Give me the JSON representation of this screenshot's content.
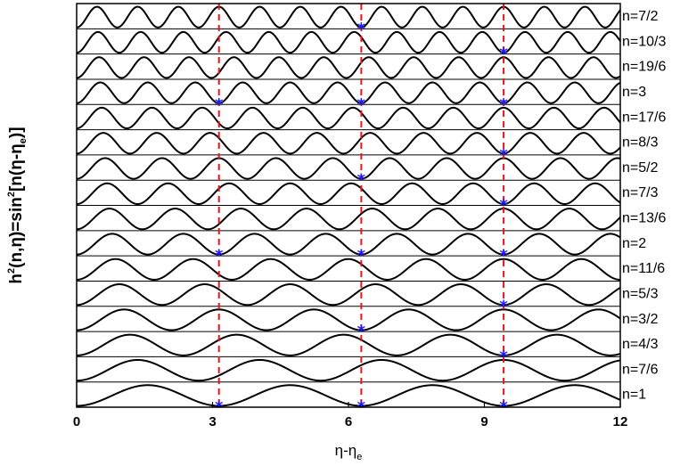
{
  "chart_data": {
    "type": "line",
    "title": "",
    "ylabel": {
      "h": "h",
      "sq1": "2",
      "mid": "(n,η)=sin",
      "sq2": "2",
      "bracket": "[n(η-η",
      "sub_e": "e",
      "end": ")]"
    },
    "xlabel": {
      "main": "η-η",
      "sub": "e"
    },
    "xlim": [
      0,
      12
    ],
    "xticks": [
      0,
      3,
      6,
      9,
      12
    ],
    "xtick_labels": [
      "0",
      "3",
      "6",
      "9",
      "12"
    ],
    "function": "sin^2[n(η-η_e)]",
    "grid": false,
    "legend": "none",
    "series": [
      {
        "name": "n=1",
        "n": 1.0,
        "star_x": [
          3.1416,
          6.2832,
          9.4248
        ]
      },
      {
        "name": "n=7/6",
        "n": 1.16667,
        "star_x": []
      },
      {
        "name": "n=4/3",
        "n": 1.33333,
        "star_x": [
          9.4248
        ]
      },
      {
        "name": "n=3/2",
        "n": 1.5,
        "star_x": [
          6.2832
        ]
      },
      {
        "name": "n=5/3",
        "n": 1.66667,
        "star_x": [
          9.4248
        ]
      },
      {
        "name": "n=11/6",
        "n": 1.83333,
        "star_x": []
      },
      {
        "name": "n=2",
        "n": 2.0,
        "star_x": [
          3.1416,
          6.2832,
          9.4248
        ]
      },
      {
        "name": "n=13/6",
        "n": 2.16667,
        "star_x": []
      },
      {
        "name": "n=7/3",
        "n": 2.33333,
        "star_x": [
          9.4248
        ]
      },
      {
        "name": "n=5/2",
        "n": 2.5,
        "star_x": [
          6.2832
        ]
      },
      {
        "name": "n=8/3",
        "n": 2.66667,
        "star_x": [
          9.4248
        ]
      },
      {
        "name": "n=17/6",
        "n": 2.83333,
        "star_x": []
      },
      {
        "name": "n=3",
        "n": 3.0,
        "star_x": [
          3.1416,
          6.2832,
          9.4248
        ]
      },
      {
        "name": "n=19/6",
        "n": 3.16667,
        "star_x": []
      },
      {
        "name": "n=10/3",
        "n": 3.33333,
        "star_x": [
          9.4248
        ]
      },
      {
        "name": "n=7/2",
        "n": 3.5,
        "star_x": [
          6.2832
        ]
      }
    ],
    "vlines_x": [
      3.1416,
      6.2832,
      9.4248
    ],
    "colors": {
      "curve": "#000000",
      "vline": "#e8141e",
      "star": "#1a1aff",
      "frame": "#000000"
    }
  }
}
